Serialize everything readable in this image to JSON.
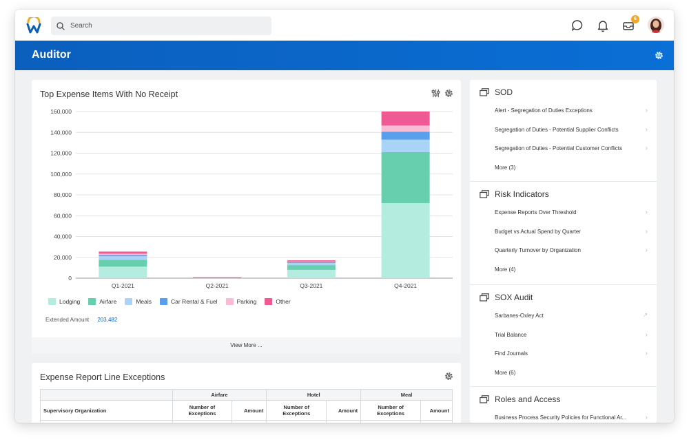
{
  "topbar": {
    "search_placeholder": "Search",
    "inbox_badge": "6"
  },
  "header": {
    "title": "Auditor"
  },
  "chart_card": {
    "title": "Top Expense Items With No Receipt",
    "extended_amount_label": "Extended Amount",
    "extended_amount_value": "203,482",
    "view_more": "View More ..."
  },
  "chart_data": {
    "type": "bar",
    "stacked": true,
    "title": "Top Expense Items With No Receipt",
    "categories": [
      "Q1-2021",
      "Q2-2021",
      "Q3-2021",
      "Q4-2021"
    ],
    "y_ticks": [
      "160,000",
      "140,000",
      "120,000",
      "100,000",
      "80,000",
      "60,000",
      "40,000",
      "20,000",
      "0"
    ],
    "ylim": [
      0,
      160000
    ],
    "grid": true,
    "legend_position": "bottom-left",
    "series": [
      {
        "name": "Lodging",
        "color": "#b4ecdf",
        "values": [
          11000,
          0,
          8000,
          72000
        ]
      },
      {
        "name": "Airfare",
        "color": "#67cfad",
        "values": [
          6500,
          0,
          4500,
          49000
        ]
      },
      {
        "name": "Meals",
        "color": "#a9d3f7",
        "values": [
          3500,
          0,
          2000,
          12000
        ]
      },
      {
        "name": "Car Rental & Fuel",
        "color": "#5a9fec",
        "values": [
          1200,
          0,
          800,
          7500
        ]
      },
      {
        "name": "Parking",
        "color": "#f8bdd6",
        "values": [
          1300,
          0,
          600,
          6000
        ]
      },
      {
        "name": "Other",
        "color": "#f05a94",
        "values": [
          2000,
          800,
          1200,
          13500
        ]
      }
    ]
  },
  "table_card": {
    "title": "Expense Report Line Exceptions",
    "groups": [
      "Airfare",
      "Hotel",
      "Meal"
    ],
    "columns": [
      "Supervisory Organization",
      "Number of Exceptions",
      "Amount",
      "Number of Exceptions",
      "Amount",
      "Number of Exceptions",
      "Amount"
    ]
  },
  "side": {
    "sections": [
      {
        "title": "SOD",
        "items": [
          "Alert - Segregation of Duties Exceptions",
          "Segregation of Duties - Potential Supplier Conflicts",
          "Segregation of Duties - Potential Customer Conflicts"
        ],
        "more": "More (3)"
      },
      {
        "title": "Risk Indicators",
        "items": [
          "Expense Reports Over Threshold",
          "Budget vs Actual Spend by Quarter",
          "Quarterly Turnover by Organization"
        ],
        "more": "More (4)"
      },
      {
        "title": "SOX Audit",
        "items": [
          "Sarbanes-Oxley Act",
          "Trial Balance",
          "Find Journals"
        ],
        "more": "More (6)"
      },
      {
        "title": "Roles and Access",
        "items": [
          "Business Process Security Policies for Functional Ar..."
        ],
        "more": ""
      }
    ]
  },
  "colors": {
    "brand_blue": "#0a6fd6",
    "link": "#0b64c8",
    "badge": "#f5a623"
  }
}
